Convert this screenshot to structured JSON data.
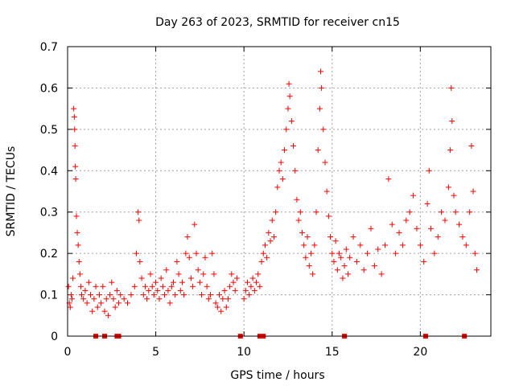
{
  "chart_data": {
    "type": "scatter",
    "title": "Day 263 of 2023, SRMTID for receiver cn15",
    "xlabel": "GPS time / hours",
    "ylabel": "SRMTID / TECUs",
    "xlim": [
      0,
      24
    ],
    "ylim": [
      0,
      0.7
    ],
    "grid": true,
    "marker": "+",
    "color": "#ff0000",
    "x_ticks": [
      {
        "value": 0,
        "label": "0"
      },
      {
        "value": 5,
        "label": "5"
      },
      {
        "value": 10,
        "label": "10"
      },
      {
        "value": 15,
        "label": "15"
      },
      {
        "value": 20,
        "label": "20"
      }
    ],
    "y_ticks": [
      {
        "value": 0,
        "label": "0"
      },
      {
        "value": 0.1,
        "label": "0.1"
      },
      {
        "value": 0.2,
        "label": "0.2"
      },
      {
        "value": 0.3,
        "label": "0.3"
      },
      {
        "value": 0.4,
        "label": "0.4"
      },
      {
        "value": 0.5,
        "label": "0.5"
      },
      {
        "value": 0.6,
        "label": "0.6"
      },
      {
        "value": 0.7,
        "label": "0.7"
      }
    ],
    "series": [
      {
        "name": "SRMTID",
        "marker": "+",
        "points": [
          [
            0.05,
            0.12
          ],
          [
            0.1,
            0.08
          ],
          [
            0.15,
            0.07
          ],
          [
            0.2,
            0.1
          ],
          [
            0.25,
            0.09
          ],
          [
            0.3,
            0.14
          ],
          [
            0.35,
            0.55
          ],
          [
            0.38,
            0.53
          ],
          [
            0.4,
            0.5
          ],
          [
            0.42,
            0.46
          ],
          [
            0.44,
            0.41
          ],
          [
            0.46,
            0.38
          ],
          [
            0.5,
            0.29
          ],
          [
            0.55,
            0.25
          ],
          [
            0.6,
            0.22
          ],
          [
            0.65,
            0.18
          ],
          [
            0.7,
            0.15
          ],
          [
            0.75,
            0.12
          ],
          [
            0.8,
            0.1
          ],
          [
            0.9,
            0.09
          ],
          [
            1.0,
            0.11
          ],
          [
            1.1,
            0.08
          ],
          [
            1.2,
            0.13
          ],
          [
            1.3,
            0.1
          ],
          [
            1.4,
            0.06
          ],
          [
            1.5,
            0.09
          ],
          [
            1.6,
            0.12
          ],
          [
            1.7,
            0.07
          ],
          [
            1.8,
            0.1
          ],
          [
            1.9,
            0.08
          ],
          [
            2.0,
            0.12
          ],
          [
            2.1,
            0.06
          ],
          [
            2.2,
            0.09
          ],
          [
            2.3,
            0.05
          ],
          [
            2.4,
            0.1
          ],
          [
            2.5,
            0.13
          ],
          [
            2.6,
            0.09
          ],
          [
            2.7,
            0.07
          ],
          [
            2.8,
            0.11
          ],
          [
            2.9,
            0.08
          ],
          [
            3.0,
            0.1
          ],
          [
            3.2,
            0.09
          ],
          [
            3.4,
            0.08
          ],
          [
            3.6,
            0.1
          ],
          [
            3.8,
            0.12
          ],
          [
            3.9,
            0.2
          ],
          [
            4.0,
            0.3
          ],
          [
            4.05,
            0.28
          ],
          [
            4.1,
            0.18
          ],
          [
            4.2,
            0.14
          ],
          [
            4.3,
            0.1
          ],
          [
            4.4,
            0.12
          ],
          [
            4.5,
            0.09
          ],
          [
            4.6,
            0.11
          ],
          [
            4.7,
            0.15
          ],
          [
            4.8,
            0.12
          ],
          [
            4.9,
            0.1
          ],
          [
            5.0,
            0.13
          ],
          [
            5.1,
            0.11
          ],
          [
            5.2,
            0.09
          ],
          [
            5.3,
            0.14
          ],
          [
            5.4,
            0.12
          ],
          [
            5.5,
            0.1
          ],
          [
            5.6,
            0.16
          ],
          [
            5.7,
            0.11
          ],
          [
            5.8,
            0.08
          ],
          [
            5.9,
            0.12
          ],
          [
            6.0,
            0.13
          ],
          [
            6.1,
            0.1
          ],
          [
            6.2,
            0.18
          ],
          [
            6.3,
            0.15
          ],
          [
            6.4,
            0.11
          ],
          [
            6.5,
            0.13
          ],
          [
            6.6,
            0.1
          ],
          [
            6.7,
            0.2
          ],
          [
            6.8,
            0.24
          ],
          [
            6.9,
            0.19
          ],
          [
            7.0,
            0.14
          ],
          [
            7.1,
            0.12
          ],
          [
            7.2,
            0.27
          ],
          [
            7.3,
            0.2
          ],
          [
            7.4,
            0.16
          ],
          [
            7.5,
            0.13
          ],
          [
            7.6,
            0.1
          ],
          [
            7.7,
            0.15
          ],
          [
            7.8,
            0.19
          ],
          [
            7.9,
            0.12
          ],
          [
            8.0,
            0.09
          ],
          [
            8.1,
            0.1
          ],
          [
            8.2,
            0.2
          ],
          [
            8.3,
            0.15
          ],
          [
            8.4,
            0.08
          ],
          [
            8.5,
            0.07
          ],
          [
            8.6,
            0.1
          ],
          [
            8.7,
            0.06
          ],
          [
            8.8,
            0.09
          ],
          [
            8.9,
            0.11
          ],
          [
            9.0,
            0.07
          ],
          [
            9.1,
            0.09
          ],
          [
            9.2,
            0.12
          ],
          [
            9.3,
            0.15
          ],
          [
            9.4,
            0.13
          ],
          [
            9.5,
            0.11
          ],
          [
            9.6,
            0.14
          ],
          [
            10.0,
            0.09
          ],
          [
            10.1,
            0.11
          ],
          [
            10.2,
            0.13
          ],
          [
            10.3,
            0.1
          ],
          [
            10.4,
            0.12
          ],
          [
            10.5,
            0.14
          ],
          [
            10.6,
            0.11
          ],
          [
            10.7,
            0.13
          ],
          [
            10.8,
            0.15
          ],
          [
            10.9,
            0.12
          ],
          [
            11.0,
            0.18
          ],
          [
            11.1,
            0.2
          ],
          [
            11.2,
            0.22
          ],
          [
            11.3,
            0.19
          ],
          [
            11.4,
            0.25
          ],
          [
            11.5,
            0.23
          ],
          [
            11.6,
            0.28
          ],
          [
            11.7,
            0.24
          ],
          [
            11.8,
            0.3
          ],
          [
            11.9,
            0.36
          ],
          [
            12.0,
            0.4
          ],
          [
            12.1,
            0.42
          ],
          [
            12.2,
            0.38
          ],
          [
            12.3,
            0.45
          ],
          [
            12.4,
            0.5
          ],
          [
            12.5,
            0.55
          ],
          [
            12.55,
            0.61
          ],
          [
            12.6,
            0.58
          ],
          [
            12.7,
            0.52
          ],
          [
            12.8,
            0.46
          ],
          [
            12.9,
            0.4
          ],
          [
            13.0,
            0.33
          ],
          [
            13.1,
            0.28
          ],
          [
            13.2,
            0.3
          ],
          [
            13.3,
            0.25
          ],
          [
            13.4,
            0.22
          ],
          [
            13.5,
            0.19
          ],
          [
            13.6,
            0.24
          ],
          [
            13.7,
            0.17
          ],
          [
            13.8,
            0.2
          ],
          [
            13.9,
            0.15
          ],
          [
            14.0,
            0.22
          ],
          [
            14.1,
            0.3
          ],
          [
            14.2,
            0.45
          ],
          [
            14.3,
            0.55
          ],
          [
            14.35,
            0.64
          ],
          [
            14.4,
            0.6
          ],
          [
            14.5,
            0.5
          ],
          [
            14.6,
            0.42
          ],
          [
            14.7,
            0.35
          ],
          [
            14.8,
            0.29
          ],
          [
            14.9,
            0.24
          ],
          [
            15.0,
            0.2
          ],
          [
            15.1,
            0.18
          ],
          [
            15.2,
            0.23
          ],
          [
            15.3,
            0.16
          ],
          [
            15.4,
            0.2
          ],
          [
            15.5,
            0.19
          ],
          [
            15.6,
            0.14
          ],
          [
            15.7,
            0.17
          ],
          [
            15.8,
            0.21
          ],
          [
            15.9,
            0.15
          ],
          [
            16.0,
            0.19
          ],
          [
            16.2,
            0.24
          ],
          [
            16.4,
            0.18
          ],
          [
            16.6,
            0.22
          ],
          [
            16.8,
            0.16
          ],
          [
            17.0,
            0.2
          ],
          [
            17.2,
            0.26
          ],
          [
            17.4,
            0.17
          ],
          [
            17.6,
            0.21
          ],
          [
            17.8,
            0.15
          ],
          [
            18.0,
            0.22
          ],
          [
            18.2,
            0.38
          ],
          [
            18.4,
            0.27
          ],
          [
            18.6,
            0.2
          ],
          [
            18.8,
            0.25
          ],
          [
            19.0,
            0.22
          ],
          [
            19.2,
            0.28
          ],
          [
            19.4,
            0.3
          ],
          [
            19.6,
            0.34
          ],
          [
            19.8,
            0.26
          ],
          [
            20.0,
            0.22
          ],
          [
            20.2,
            0.18
          ],
          [
            20.4,
            0.32
          ],
          [
            20.5,
            0.4
          ],
          [
            20.6,
            0.26
          ],
          [
            20.8,
            0.2
          ],
          [
            21.0,
            0.24
          ],
          [
            21.2,
            0.3
          ],
          [
            21.4,
            0.28
          ],
          [
            21.6,
            0.36
          ],
          [
            21.7,
            0.45
          ],
          [
            21.75,
            0.6
          ],
          [
            21.8,
            0.52
          ],
          [
            21.9,
            0.34
          ],
          [
            22.0,
            0.3
          ],
          [
            22.2,
            0.27
          ],
          [
            22.4,
            0.24
          ],
          [
            22.6,
            0.22
          ],
          [
            22.8,
            0.3
          ],
          [
            22.9,
            0.46
          ],
          [
            23.0,
            0.35
          ],
          [
            23.1,
            0.2
          ],
          [
            23.2,
            0.16
          ]
        ]
      },
      {
        "name": "zero-value markers",
        "marker": "square",
        "points": [
          [
            1.6,
            0
          ],
          [
            2.1,
            0
          ],
          [
            2.8,
            0
          ],
          [
            2.9,
            0
          ],
          [
            9.8,
            0
          ],
          [
            10.9,
            0
          ],
          [
            11.1,
            0
          ],
          [
            15.7,
            0
          ],
          [
            20.3,
            0
          ],
          [
            22.5,
            0
          ]
        ]
      }
    ]
  }
}
